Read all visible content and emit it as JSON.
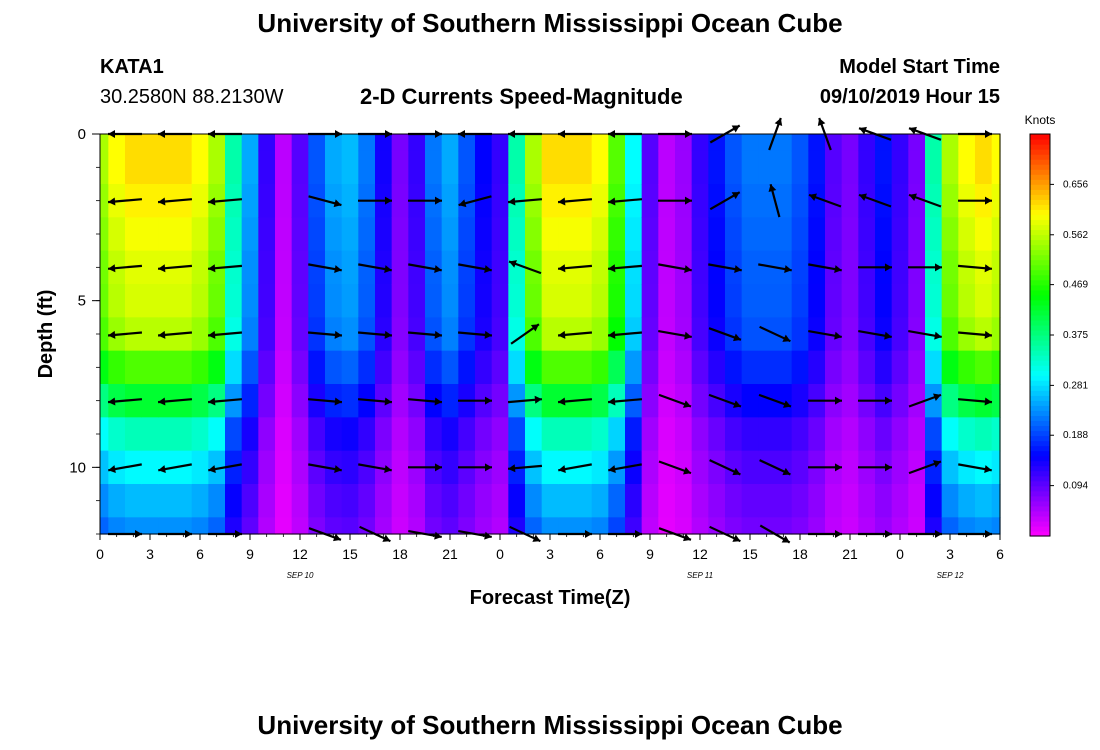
{
  "header": {
    "title_top": "University of Southern Mississippi Ocean Cube",
    "station_id": "KATA1",
    "coordinates": "30.2580N 88.2130W",
    "plot_title": "2-D Currents Speed-Magnitude",
    "model_label": "Model Start Time",
    "model_time": "09/10/2019 Hour 15",
    "title_bottom": "University of Southern Mississippi Ocean Cube"
  },
  "chart_data": {
    "type": "heatmap",
    "title": "2-D Currents Speed-Magnitude",
    "xlabel": "Forecast Time(Z)",
    "ylabel": "Depth (ft)",
    "xlim": [
      0,
      54
    ],
    "ylim": [
      0,
      12
    ],
    "x_tick_values": [
      0,
      3,
      6,
      9,
      12,
      15,
      18,
      21,
      24,
      27,
      30,
      33,
      36,
      39,
      42,
      45,
      48,
      51,
      54
    ],
    "x_tick_labels": [
      "0",
      "3",
      "6",
      "9",
      "12",
      "15",
      "18",
      "21",
      "0",
      "3",
      "6",
      "9",
      "12",
      "15",
      "18",
      "21",
      "0",
      "3",
      "6"
    ],
    "y_tick_values": [
      0,
      5,
      10
    ],
    "y_tick_labels": [
      "0",
      "5",
      "10"
    ],
    "date_labels": [
      {
        "text": "SEP 10",
        "x": 12
      },
      {
        "text": "SEP 11",
        "x": 36
      },
      {
        "text": "SEP 12",
        "x": 51
      }
    ],
    "colorbar": {
      "unit": "Knots",
      "range": [
        0.0,
        0.75
      ],
      "ticks": [
        0.094,
        0.188,
        0.281,
        0.375,
        0.469,
        0.562,
        0.656
      ],
      "tick_labels": [
        "0.094",
        "0.188",
        "0.281",
        "0.375",
        "0.469",
        "0.562",
        "0.656"
      ]
    },
    "time_bins": [
      0,
      1,
      2,
      3,
      4,
      5,
      6,
      7,
      8,
      9,
      10,
      11,
      12,
      13,
      14,
      15,
      16,
      17,
      18,
      19,
      20,
      21,
      22,
      23,
      24,
      25,
      26,
      27,
      28,
      29,
      30,
      31,
      32,
      33,
      34,
      35,
      36,
      37,
      38,
      39,
      40,
      41,
      42,
      43,
      44,
      45,
      46,
      47,
      48,
      49,
      50,
      51,
      52,
      53,
      54
    ],
    "depth_bins": [
      0,
      1,
      2,
      3,
      4,
      5,
      6,
      7,
      8,
      9,
      10,
      11,
      12
    ],
    "speed_profile": [
      0.55,
      0.6,
      0.62,
      0.62,
      0.62,
      0.62,
      0.6,
      0.55,
      0.35,
      0.25,
      0.12,
      0.04,
      0.1,
      0.2,
      0.25,
      0.26,
      0.22,
      0.14,
      0.08,
      0.12,
      0.22,
      0.25,
      0.2,
      0.15,
      0.12,
      0.35,
      0.55,
      0.62,
      0.62,
      0.62,
      0.6,
      0.5,
      0.3,
      0.1,
      0.04,
      0.06,
      0.12,
      0.16,
      0.2,
      0.22,
      0.22,
      0.22,
      0.2,
      0.16,
      0.1,
      0.08,
      0.12,
      0.16,
      0.12,
      0.08,
      0.35,
      0.55,
      0.6,
      0.62,
      0.6
    ],
    "depth_factor": [
      1.0,
      1.0,
      0.98,
      0.96,
      0.94,
      0.93,
      0.9,
      0.8,
      0.68,
      0.55,
      0.48,
      0.42,
      0.38
    ],
    "vectors": {
      "times": [
        1.5,
        4.5,
        7.5,
        13.5,
        16.5,
        19.5,
        22.5,
        25.5,
        28.5,
        31.5,
        34.5,
        37.5,
        40.5,
        43.5,
        46.5,
        49.5,
        52.5
      ],
      "depths": [
        0,
        2,
        4,
        6,
        8,
        10,
        12
      ],
      "angle_deg": [
        [
          180,
          180,
          180,
          0,
          0,
          0,
          180,
          180,
          180,
          180,
          0,
          330,
          290,
          250,
          200,
          200,
          0
        ],
        [
          175,
          175,
          175,
          15,
          0,
          0,
          165,
          175,
          175,
          175,
          0,
          330,
          255,
          200,
          200,
          200,
          0
        ],
        [
          175,
          175,
          175,
          10,
          10,
          10,
          10,
          200,
          175,
          175,
          10,
          10,
          10,
          10,
          0,
          0,
          5
        ],
        [
          175,
          175,
          175,
          5,
          5,
          5,
          5,
          325,
          175,
          175,
          10,
          20,
          25,
          10,
          10,
          10,
          5
        ],
        [
          175,
          175,
          175,
          5,
          5,
          5,
          0,
          355,
          175,
          175,
          20,
          20,
          20,
          0,
          0,
          340,
          5
        ],
        [
          170,
          170,
          170,
          10,
          10,
          0,
          0,
          175,
          170,
          170,
          20,
          25,
          25,
          0,
          0,
          340,
          10
        ],
        [
          0,
          0,
          0,
          20,
          25,
          10,
          10,
          25,
          0,
          0,
          20,
          25,
          30,
          0,
          0,
          0,
          0
        ]
      ]
    }
  }
}
